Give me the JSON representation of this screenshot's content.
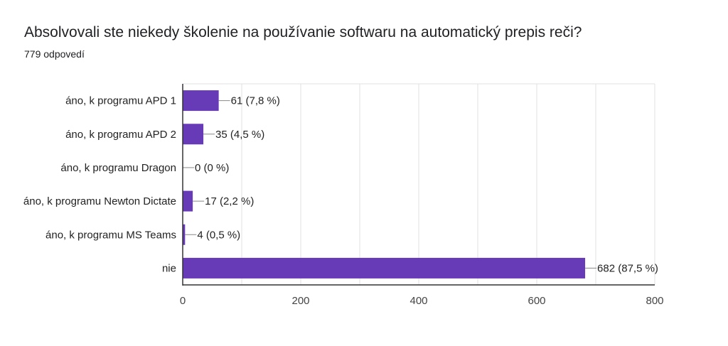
{
  "header": {
    "title": "Absolvovali ste niekedy školenie na používanie softwaru na automatický prepis reči?",
    "subtitle": "779 odpovedí"
  },
  "colors": {
    "bar": "#673ab7",
    "grid": "#e0e0e0",
    "axis": "#333333"
  },
  "chart_data": {
    "type": "bar",
    "orientation": "horizontal",
    "categories": [
      "áno, k programu APD 1",
      "áno, k programu APD 2",
      "áno, k programu Dragon",
      "áno, k programu Newton Dictate",
      "áno, k programu MS Teams",
      "nie"
    ],
    "values": [
      61,
      35,
      0,
      17,
      4,
      682
    ],
    "value_labels": [
      "61 (7,8 %)",
      "35 (4,5 %)",
      "0 (0 %)",
      "17 (2,2 %)",
      "4 (0,5 %)",
      "682 (87,5 %)"
    ],
    "xlim": [
      0,
      800
    ],
    "xticks": [
      0,
      200,
      400,
      600,
      800
    ],
    "grid": true,
    "legend": "none"
  }
}
